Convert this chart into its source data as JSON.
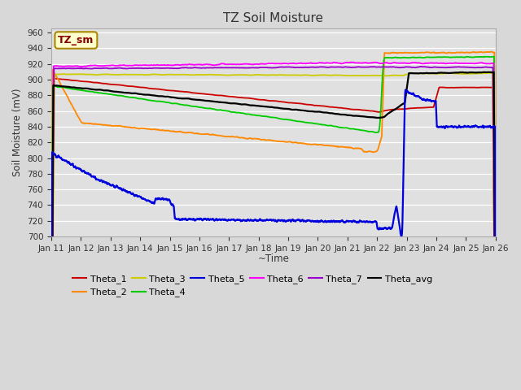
{
  "title": "TZ Soil Moisture",
  "ylabel": "Soil Moisture (mV)",
  "xlabel": "~Time",
  "ylim": [
    700,
    965
  ],
  "yticks": [
    700,
    720,
    740,
    760,
    780,
    800,
    820,
    840,
    860,
    880,
    900,
    920,
    940,
    960
  ],
  "bg_color": "#d8d8d8",
  "plot_bg_color": "#e0e0e0",
  "label_box": "TZ_sm",
  "label_box_bg": "#ffffcc",
  "label_box_text": "#880000",
  "series_colors": {
    "Theta_1": "#cc0000",
    "Theta_2": "#ff8800",
    "Theta_3": "#cccc00",
    "Theta_4": "#00cc00",
    "Theta_5": "#0000dd",
    "Theta_6": "#ff00ff",
    "Theta_7": "#9900cc",
    "Theta_avg": "#000000"
  },
  "n_days": 16,
  "start_day": 11
}
